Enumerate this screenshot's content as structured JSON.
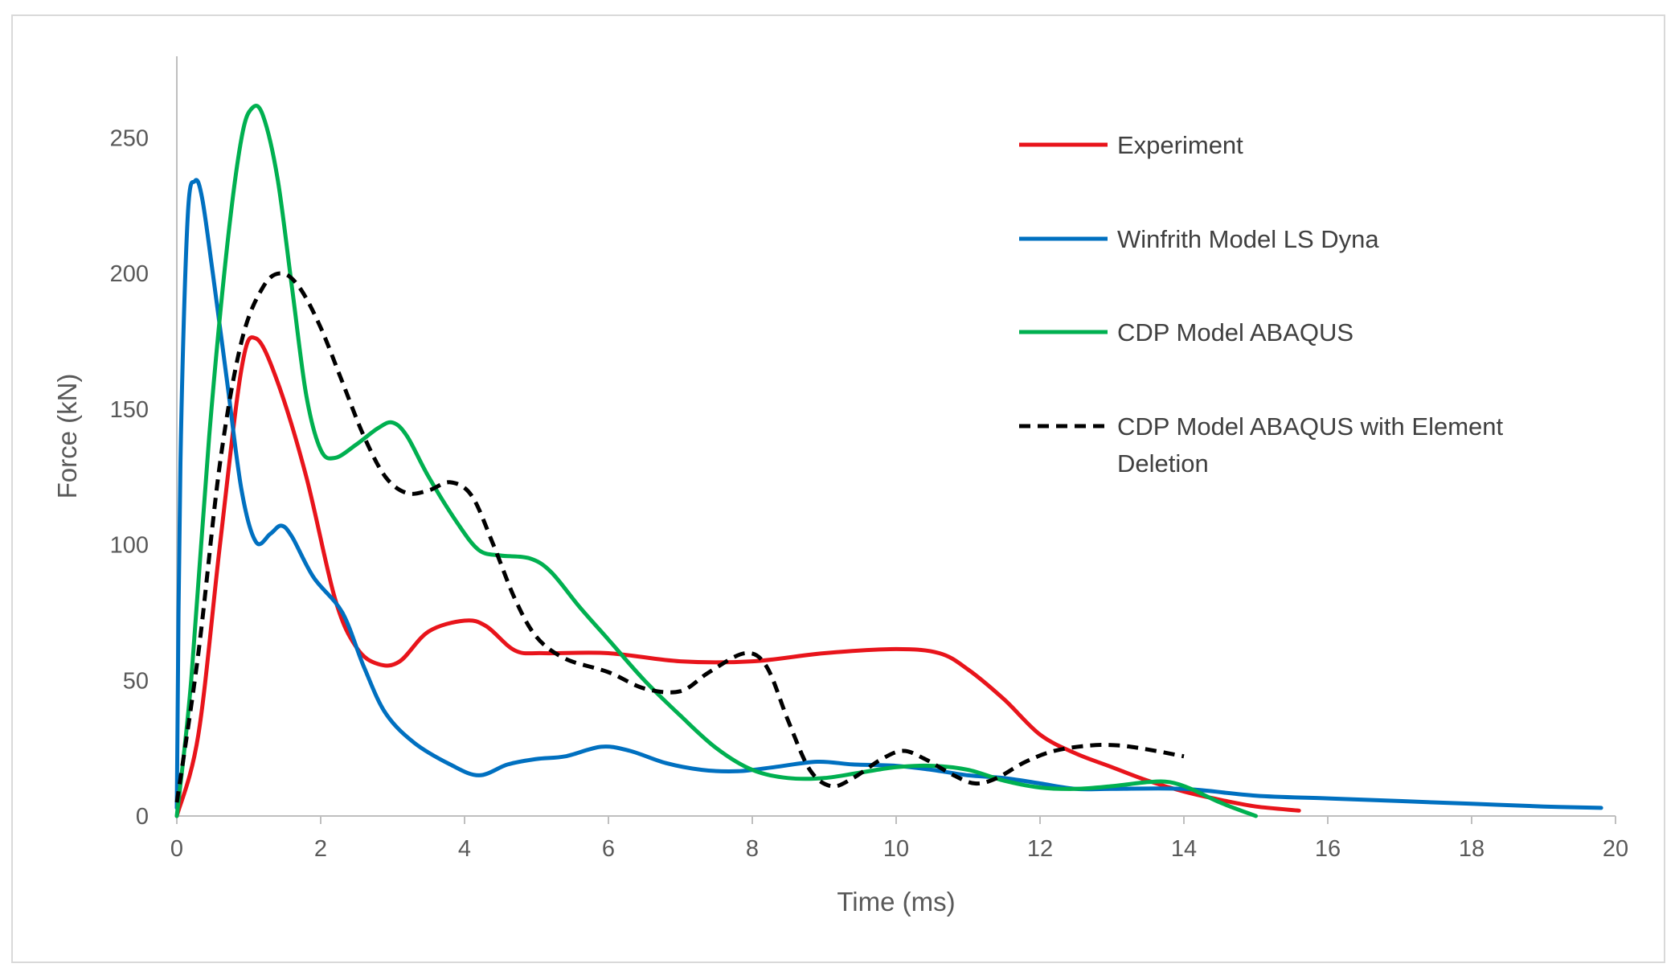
{
  "chart_data": {
    "type": "line",
    "title": "",
    "xlabel": "Time (ms)",
    "ylabel": "Force (kN)",
    "xlim": [
      0,
      20
    ],
    "ylim": [
      0,
      280
    ],
    "xticks": [
      0,
      2,
      4,
      6,
      8,
      10,
      12,
      14,
      16,
      18,
      20
    ],
    "yticks": [
      0,
      50,
      100,
      150,
      200,
      250
    ],
    "grid": false,
    "legend_position": "upper-right",
    "series": [
      {
        "name": "Experiment",
        "color": "#e8141b",
        "dash": "solid",
        "points": [
          [
            0,
            0
          ],
          [
            0.3,
            30
          ],
          [
            0.6,
            100
          ],
          [
            0.9,
            165
          ],
          [
            1.1,
            176
          ],
          [
            1.4,
            160
          ],
          [
            1.8,
            125
          ],
          [
            2.2,
            80
          ],
          [
            2.5,
            62
          ],
          [
            2.8,
            56
          ],
          [
            3.1,
            57
          ],
          [
            3.5,
            68
          ],
          [
            4.0,
            72
          ],
          [
            4.3,
            70
          ],
          [
            4.7,
            61
          ],
          [
            5.1,
            60
          ],
          [
            6.0,
            60
          ],
          [
            7.0,
            57
          ],
          [
            8.0,
            57
          ],
          [
            9.0,
            60
          ],
          [
            10.0,
            61.5
          ],
          [
            10.6,
            60
          ],
          [
            11.0,
            54
          ],
          [
            11.5,
            43
          ],
          [
            12.0,
            30
          ],
          [
            12.5,
            23
          ],
          [
            13.0,
            18
          ],
          [
            13.5,
            13
          ],
          [
            14.0,
            9
          ],
          [
            14.5,
            6
          ],
          [
            15.0,
            3.5
          ],
          [
            15.6,
            2
          ]
        ]
      },
      {
        "name": "Winfrith Model LS Dyna",
        "color": "#0070c0",
        "dash": "solid",
        "points": [
          [
            0,
            3
          ],
          [
            0.05,
            130
          ],
          [
            0.15,
            220
          ],
          [
            0.25,
            234
          ],
          [
            0.35,
            228
          ],
          [
            0.5,
            200
          ],
          [
            0.7,
            160
          ],
          [
            0.9,
            120
          ],
          [
            1.1,
            101
          ],
          [
            1.3,
            104
          ],
          [
            1.45,
            107
          ],
          [
            1.6,
            103
          ],
          [
            1.9,
            88
          ],
          [
            2.3,
            75
          ],
          [
            2.6,
            55
          ],
          [
            2.9,
            38
          ],
          [
            3.3,
            27
          ],
          [
            3.8,
            19
          ],
          [
            4.2,
            15
          ],
          [
            4.6,
            19
          ],
          [
            5.0,
            21
          ],
          [
            5.4,
            22
          ],
          [
            5.9,
            25.5
          ],
          [
            6.3,
            24
          ],
          [
            6.8,
            19.5
          ],
          [
            7.3,
            17
          ],
          [
            7.8,
            16.5
          ],
          [
            8.3,
            18
          ],
          [
            8.9,
            20
          ],
          [
            9.4,
            19
          ],
          [
            10.0,
            18.5
          ],
          [
            10.5,
            17
          ],
          [
            11.0,
            15
          ],
          [
            11.5,
            14
          ],
          [
            12.0,
            12
          ],
          [
            12.5,
            10
          ],
          [
            13.0,
            10
          ],
          [
            14.0,
            10
          ],
          [
            15.0,
            7.5
          ],
          [
            16.0,
            6.5
          ],
          [
            17.0,
            5.5
          ],
          [
            18.0,
            4.5
          ],
          [
            19.0,
            3.5
          ],
          [
            19.8,
            3
          ]
        ]
      },
      {
        "name": "CDP Model ABAQUS",
        "color": "#00b050",
        "dash": "solid",
        "points": [
          [
            0,
            0
          ],
          [
            0.2,
            50
          ],
          [
            0.45,
            140
          ],
          [
            0.7,
            210
          ],
          [
            0.9,
            250
          ],
          [
            1.05,
            261
          ],
          [
            1.2,
            258
          ],
          [
            1.4,
            235
          ],
          [
            1.6,
            195
          ],
          [
            1.8,
            155
          ],
          [
            2.0,
            135
          ],
          [
            2.2,
            132
          ],
          [
            2.5,
            137
          ],
          [
            2.8,
            143
          ],
          [
            3.0,
            145
          ],
          [
            3.2,
            140
          ],
          [
            3.5,
            125
          ],
          [
            3.9,
            108
          ],
          [
            4.2,
            98
          ],
          [
            4.5,
            96
          ],
          [
            4.9,
            95
          ],
          [
            5.2,
            90
          ],
          [
            5.6,
            77
          ],
          [
            6.0,
            65
          ],
          [
            6.5,
            50
          ],
          [
            7.0,
            37
          ],
          [
            7.5,
            25
          ],
          [
            8.0,
            17
          ],
          [
            8.5,
            14
          ],
          [
            9.0,
            14
          ],
          [
            9.5,
            16
          ],
          [
            10.0,
            18
          ],
          [
            10.5,
            18.5
          ],
          [
            11.0,
            17
          ],
          [
            11.5,
            13
          ],
          [
            12.0,
            10.5
          ],
          [
            12.5,
            10
          ],
          [
            13.0,
            11
          ],
          [
            13.5,
            12.5
          ],
          [
            13.8,
            12.5
          ],
          [
            14.1,
            10
          ],
          [
            14.5,
            5
          ],
          [
            15.0,
            0
          ]
        ]
      },
      {
        "name": "CDP Model ABAQUS with Element Deletion",
        "color": "#000000",
        "dash": "dashed",
        "points": [
          [
            0,
            5
          ],
          [
            0.3,
            60
          ],
          [
            0.6,
            130
          ],
          [
            0.9,
            175
          ],
          [
            1.2,
            195
          ],
          [
            1.45,
            200
          ],
          [
            1.7,
            195
          ],
          [
            2.0,
            180
          ],
          [
            2.3,
            160
          ],
          [
            2.6,
            140
          ],
          [
            2.9,
            125
          ],
          [
            3.2,
            119
          ],
          [
            3.5,
            120
          ],
          [
            3.8,
            123
          ],
          [
            4.1,
            118
          ],
          [
            4.4,
            100
          ],
          [
            4.7,
            80
          ],
          [
            5.0,
            66
          ],
          [
            5.4,
            58
          ],
          [
            6.0,
            53
          ],
          [
            6.5,
            47
          ],
          [
            7.0,
            46
          ],
          [
            7.4,
            53
          ],
          [
            7.9,
            60
          ],
          [
            8.2,
            55
          ],
          [
            8.5,
            35
          ],
          [
            8.8,
            17
          ],
          [
            9.1,
            11
          ],
          [
            9.4,
            14
          ],
          [
            9.8,
            21
          ],
          [
            10.1,
            24
          ],
          [
            10.4,
            21
          ],
          [
            10.8,
            15
          ],
          [
            11.1,
            12
          ],
          [
            11.4,
            14
          ],
          [
            11.8,
            20
          ],
          [
            12.2,
            24
          ],
          [
            12.7,
            26
          ],
          [
            13.1,
            26
          ],
          [
            13.5,
            24.5
          ],
          [
            14.0,
            22
          ]
        ]
      }
    ],
    "legend_entries": [
      "Experiment",
      "Winfrith Model LS Dyna",
      "CDP Model ABAQUS",
      "CDP Model ABAQUS with Element Deletion"
    ],
    "legend_lines": [
      [
        "Experiment"
      ],
      [
        "Winfrith Model LS Dyna"
      ],
      [
        "CDP Model ABAQUS"
      ],
      [
        "CDP Model ABAQUS with Element",
        "Deletion"
      ]
    ]
  }
}
